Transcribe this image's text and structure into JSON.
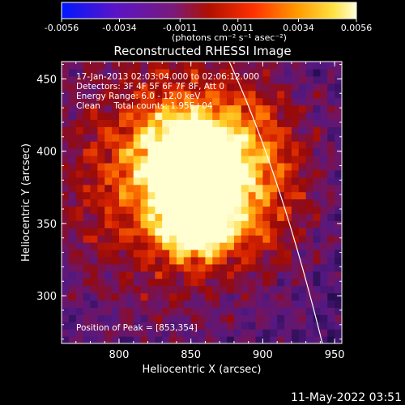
{
  "colorbar": {
    "ticks": [
      "-0.0056",
      "-0.0034",
      "-0.0011",
      "0.0011",
      "0.0034",
      "0.0056"
    ],
    "unit_label": "(photons cm⁻² s⁻¹ asec⁻²)"
  },
  "chart_data": {
    "type": "heatmap",
    "title": "Reconstructed RHESSI Image",
    "xlabel": "Heliocentric X (arcsec)",
    "ylabel": "Heliocentric Y (arcsec)",
    "xlim": [
      760,
      955
    ],
    "ylim": [
      267,
      462
    ],
    "x_ticks": [
      "800",
      "850",
      "900",
      "950"
    ],
    "y_ticks": [
      "300",
      "350",
      "400",
      "450"
    ],
    "color_range": [
      -0.0056,
      0.0056
    ],
    "peak": [
      853,
      354
    ],
    "annotations": [
      "17-Jan-2013 02:03:04.000 to 02:06:12.000",
      "Detectors: 3F 4F 5F 6F 7F 8F, Att 0",
      "Energy Range: 6.0 - 12.0 keV",
      "Clean     Total counts: 1.95E+04"
    ],
    "peak_label": "Position of Peak = [853,354]"
  },
  "footer": {
    "timestamp": "11-May-2022 03:51"
  }
}
